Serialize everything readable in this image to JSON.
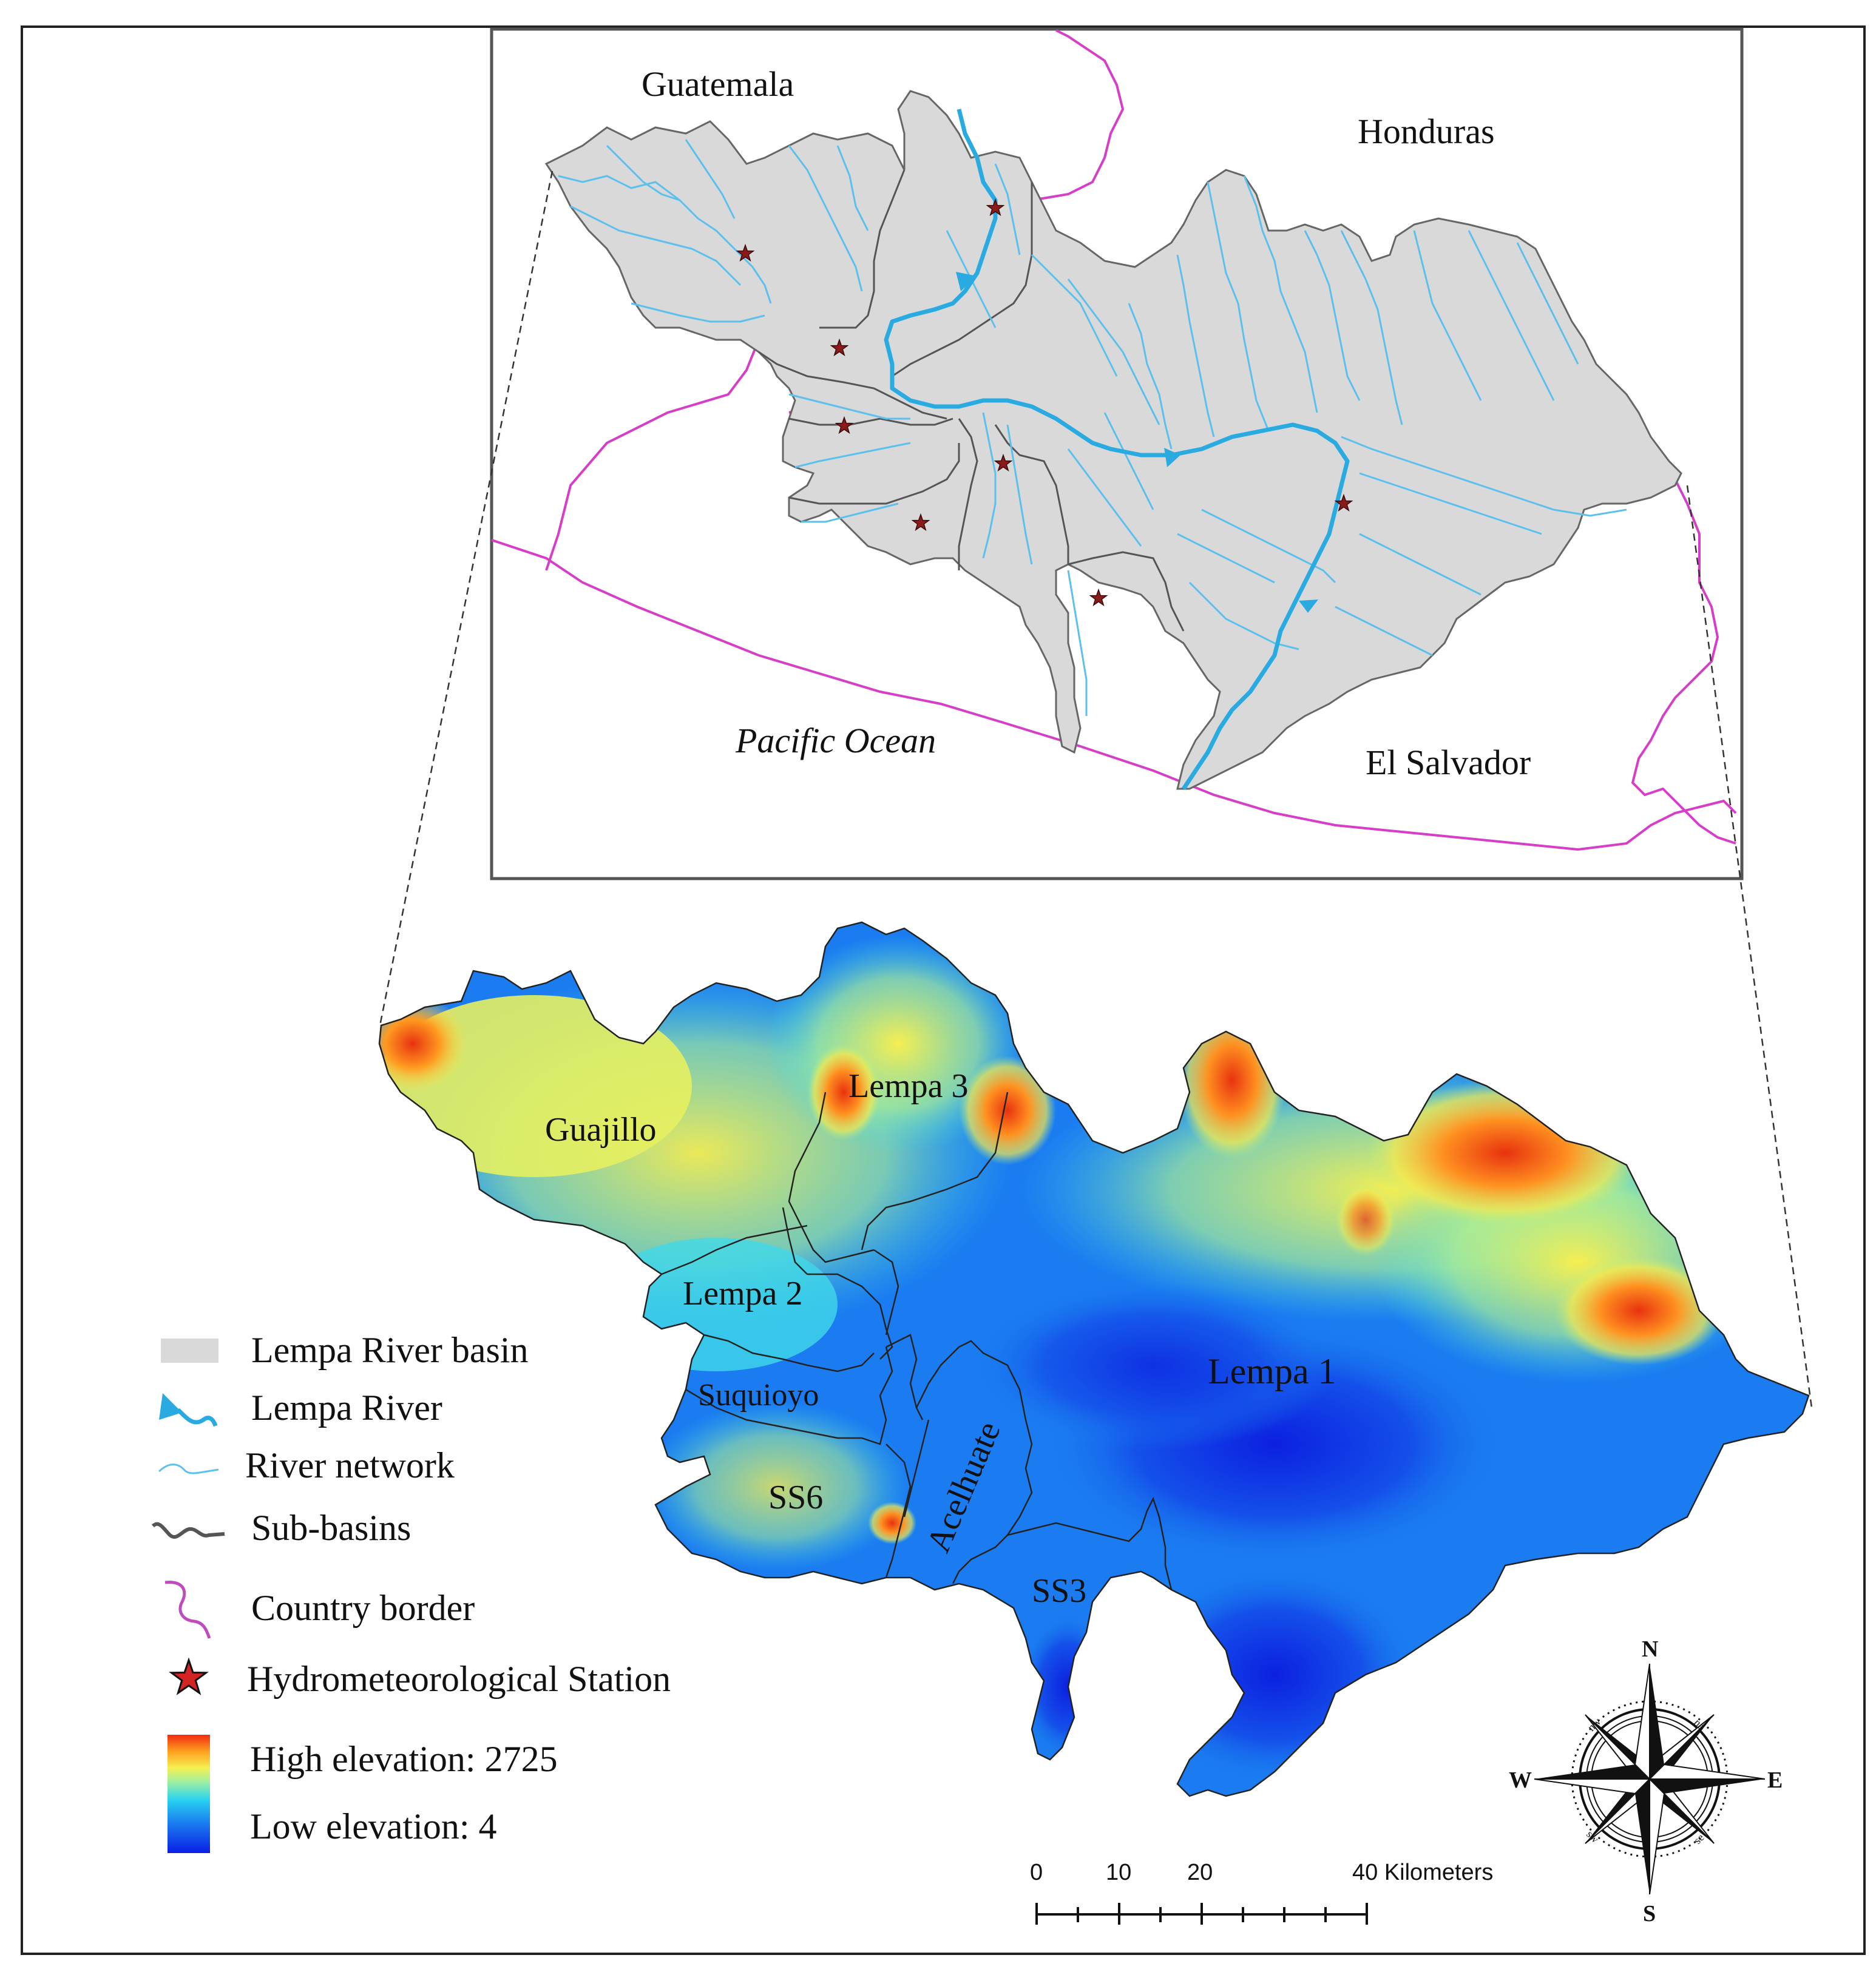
{
  "inset_map": {
    "labels": {
      "guatemala": "Guatemala",
      "honduras": "Honduras",
      "pacific_ocean": "Pacific Ocean",
      "el_salvador": "El Salvador"
    }
  },
  "elevation_map": {
    "subbasins": {
      "guajillo": "Guajillo",
      "lempa3": "Lempa 3",
      "lempa2": "Lempa 2",
      "suquioyo": "Suquioyo",
      "ss6": "SS6",
      "acelhuate": "Acelhuate",
      "ss3": "SS3",
      "lempa1": "Lempa 1"
    }
  },
  "legend": {
    "basin": "Lempa River basin",
    "river": "Lempa River",
    "network": "River network",
    "subbasins": "Sub-basins",
    "border": "Country border",
    "station": "Hydrometeorological Station",
    "high": "High elevation: 2725",
    "low": "Low elevation: 4"
  },
  "scale_bar": {
    "ticks": [
      "0",
      "10",
      "20",
      "40 Kilometers"
    ]
  },
  "compass": {
    "n": "N",
    "s": "S",
    "e": "E",
    "w": "W",
    "nw": "nw",
    "ne": "ne",
    "sw": "sw",
    "se": "se"
  },
  "colors": {
    "basin_fill": "#d9d9d9",
    "river": "#29abe2",
    "network": "#5bc0eb",
    "border": "#d63ec8",
    "station": "#8b1a1a",
    "subbasin_line": "#555555"
  }
}
